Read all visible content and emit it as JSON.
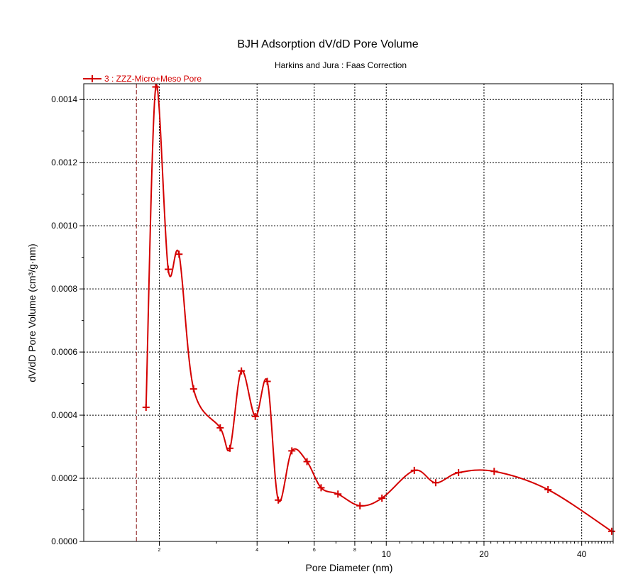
{
  "chart_data": {
    "type": "line",
    "title": "BJH Adsorption dV/dD Pore Volume",
    "subtitle": "Harkins and Jura : Faas Correction",
    "xlabel": "Pore Diameter (nm)",
    "ylabel": "dV/dD Pore Volume (cm³/g·nm)",
    "x_scale": "log",
    "xlim": [
      1.17,
      50
    ],
    "ylim": [
      0,
      0.00145
    ],
    "grid": true,
    "legend_position": "top-left",
    "x_ticks": [
      {
        "value": 2,
        "label": "2",
        "size": "small"
      },
      {
        "value": 4,
        "label": "4",
        "size": "small"
      },
      {
        "value": 6,
        "label": "6",
        "size": "small"
      },
      {
        "value": 8,
        "label": "8",
        "size": "small"
      },
      {
        "value": 10,
        "label": "10",
        "size": "large"
      },
      {
        "value": 20,
        "label": "20",
        "size": "large"
      },
      {
        "value": 40,
        "label": "40",
        "size": "large"
      }
    ],
    "x_gridlines": [
      2,
      4,
      6,
      8,
      10,
      20,
      40,
      50
    ],
    "y_ticks": [
      {
        "value": 0,
        "label": "0.0000"
      },
      {
        "value": 0.0002,
        "label": "0.0002"
      },
      {
        "value": 0.0004,
        "label": "0.0004"
      },
      {
        "value": 0.0006,
        "label": "0.0006"
      },
      {
        "value": 0.0008,
        "label": "0.0008"
      },
      {
        "value": 0.001,
        "label": "0.0010"
      },
      {
        "value": 0.0012,
        "label": "0.0012"
      },
      {
        "value": 0.0014,
        "label": "0.0014"
      }
    ],
    "reference_line_x": 1.7,
    "series": [
      {
        "name": "3 : ZZZ-Micro+Meso Pore",
        "color": "#d40000",
        "x": [
          1.82,
          1.95,
          2.13,
          2.3,
          2.55,
          3.08,
          3.3,
          3.58,
          3.95,
          4.3,
          4.65,
          5.12,
          5.7,
          6.3,
          7.1,
          8.3,
          9.7,
          12.2,
          14.2,
          16.7,
          21.5,
          31.5,
          49.5
        ],
        "values": [
          0.000425,
          0.00144,
          0.000862,
          0.00091,
          0.000483,
          0.00036,
          0.000295,
          0.00054,
          0.000396,
          0.000507,
          0.000131,
          0.000287,
          0.000253,
          0.00017,
          0.00015,
          0.000113,
          0.000137,
          0.000225,
          0.000186,
          0.000218,
          0.000222,
          0.000164,
          3.2e-05
        ]
      }
    ]
  }
}
